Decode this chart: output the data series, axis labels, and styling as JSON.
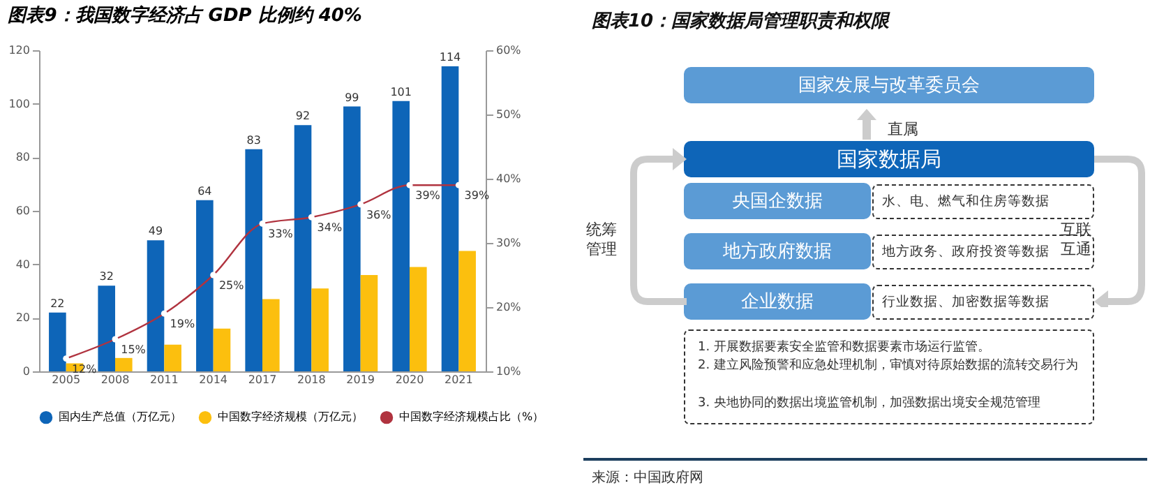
{
  "chart_data": [
    {
      "type": "bar",
      "title": "图表9：我国数字经济占 GDP 比例约 40%",
      "categories": [
        "2005",
        "2008",
        "2011",
        "2014",
        "2017",
        "2018",
        "2019",
        "2020",
        "2021"
      ],
      "series": [
        {
          "name": "国内生产总值（万亿元）",
          "color": "#0e65b8",
          "values": [
            22,
            32,
            49,
            64,
            83,
            92,
            99,
            101,
            114
          ],
          "value_labels": [
            "22",
            "32",
            "49",
            "64",
            "83",
            "92",
            "99",
            "101",
            "114"
          ]
        },
        {
          "name": "中国数字经济规模（万亿元）",
          "color": "#fcbf0e",
          "values": [
            3,
            5,
            10,
            16,
            27,
            31,
            36,
            39,
            45
          ]
        },
        {
          "name": "中国数字经济规模占比（%）",
          "type": "line",
          "axis": "y2",
          "color": "#b0333f",
          "values": [
            12,
            15,
            19,
            25,
            33,
            34,
            36,
            39,
            39
          ],
          "value_labels": [
            "12%",
            "15%",
            "19%",
            "25%",
            "33%",
            "34%",
            "36%",
            "39%",
            "39%"
          ]
        }
      ],
      "ylim": [
        0,
        120
      ],
      "yticks": [
        0,
        20,
        40,
        60,
        80,
        100,
        120
      ],
      "y2lim": [
        10,
        60
      ],
      "y2ticks": [
        {
          "value": 10,
          "label": "10%"
        },
        {
          "value": 20,
          "label": "20%"
        },
        {
          "value": 30,
          "label": "30%"
        },
        {
          "value": 40,
          "label": "40%"
        },
        {
          "value": 50,
          "label": "50%"
        },
        {
          "value": 60,
          "label": "60%"
        }
      ],
      "legend": "bottom",
      "marker": "circle",
      "grid": false
    },
    {
      "type": "other",
      "title": "图表10：国家数据局管理职责和权限",
      "annotations": [
        "国家发展与改革委员会",
        "直属",
        "国家数据局",
        "央国企数据",
        "水、电、燃气和住房等数据",
        "地方政府数据",
        "地方政务、政府投资等数据",
        "企业数据",
        "行业数据、加密数据等数据",
        "统筹管理",
        "互联互通",
        "1. 开展数据要素安全监管和数据要素市场运行监管。",
        "2. 建立风险预警和应急处理机制，审慎对待原始数据的流转交易行为",
        "3. 央地协同的数据出境监管机制，加强数据出境安全规范管理",
        "来源：中国政府网"
      ]
    }
  ]
}
